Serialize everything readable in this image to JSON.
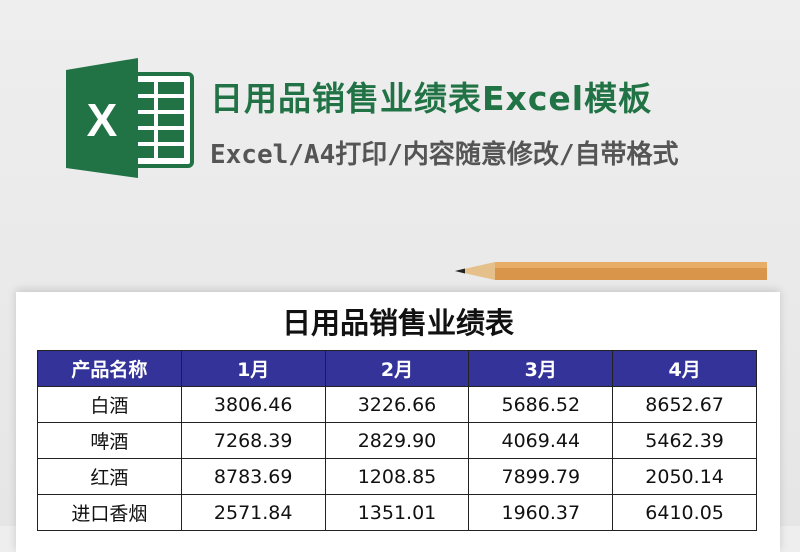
{
  "banner": {
    "title": "日用品销售业绩表Excel模板",
    "subtitle": "Excel/A4打印/内容随意修改/自带格式",
    "logo_icon": "excel-logo-icon",
    "brand_color": "#217346"
  },
  "sheet": {
    "title": "日用品销售业绩表",
    "header_color": "#333399",
    "columns": [
      "产品名称",
      "1月",
      "2月",
      "3月",
      "4月"
    ],
    "rows": [
      [
        "白酒",
        "3806.46",
        "3226.66",
        "5686.52",
        "8652.67"
      ],
      [
        "啤酒",
        "7268.39",
        "2829.90",
        "4069.44",
        "5462.39"
      ],
      [
        "红酒",
        "8783.69",
        "1208.85",
        "7899.79",
        "2050.14"
      ],
      [
        "进口香烟",
        "2571.84",
        "1351.01",
        "1960.37",
        "6410.05"
      ]
    ]
  }
}
